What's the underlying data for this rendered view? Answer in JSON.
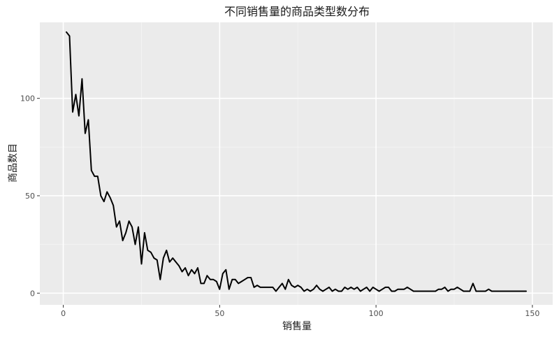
{
  "chart_data": {
    "type": "line",
    "title": "不同销售量的商品类型数分布",
    "xlabel": "销售量",
    "ylabel": "商品数目",
    "xlim": [
      -7.5,
      156.5
    ],
    "ylim": [
      -6,
      139
    ],
    "x_ticks": [
      0,
      50,
      100,
      150
    ],
    "y_ticks": [
      0,
      50,
      100
    ],
    "grid": true,
    "legend": "none",
    "colors": {
      "panel": "#ebebeb",
      "grid_major": "#ffffff",
      "line": "#000000",
      "tick": "#333333"
    },
    "series": [
      {
        "x": [
          1,
          2,
          3,
          4,
          5,
          6,
          7,
          8,
          9,
          10,
          11,
          12,
          13,
          14,
          15,
          16,
          17,
          18,
          19,
          20,
          21,
          22,
          23,
          24,
          25,
          26,
          27,
          28,
          29,
          30,
          31,
          32,
          33,
          34,
          35,
          36,
          37,
          38,
          39,
          40,
          41,
          42,
          43,
          44,
          45,
          46,
          47,
          48,
          49,
          50,
          51,
          52,
          53,
          54,
          55,
          56,
          57,
          58,
          59,
          60,
          61,
          62,
          63,
          64,
          65,
          66,
          67,
          68,
          69,
          70,
          71,
          72,
          73,
          74,
          75,
          76,
          77,
          78,
          79,
          80,
          81,
          82,
          83,
          84,
          85,
          86,
          87,
          88,
          89,
          90,
          91,
          92,
          93,
          94,
          95,
          96,
          97,
          98,
          99,
          100,
          101,
          102,
          103,
          104,
          105,
          106,
          107,
          108,
          109,
          110,
          111,
          112,
          113,
          114,
          115,
          116,
          117,
          118,
          119,
          120,
          121,
          122,
          123,
          124,
          125,
          126,
          127,
          128,
          129,
          130,
          131,
          132,
          133,
          134,
          135,
          136,
          137,
          138,
          139,
          140,
          141,
          142,
          143,
          144,
          145,
          146,
          147,
          148
        ],
        "values": [
          134,
          132,
          93,
          102,
          91,
          110,
          82,
          89,
          63,
          60,
          60,
          50,
          47,
          52,
          49,
          45,
          34,
          37,
          27,
          31,
          37,
          34,
          25,
          34,
          15,
          31,
          22,
          21,
          18,
          17,
          7,
          18,
          22,
          16,
          18,
          16,
          14,
          11,
          13,
          9,
          12,
          10,
          13,
          5,
          5,
          9,
          7,
          7,
          6,
          2,
          10,
          12,
          2,
          7,
          7,
          5,
          6,
          7,
          8,
          8,
          3,
          4,
          3,
          3,
          3,
          3,
          3,
          1,
          3,
          5,
          2,
          7,
          4,
          3,
          4,
          3,
          1,
          2,
          1,
          2,
          4,
          2,
          1,
          2,
          3,
          1,
          2,
          1,
          1,
          3,
          2,
          3,
          2,
          3,
          1,
          2,
          3,
          1,
          3,
          2,
          1,
          2,
          3,
          3,
          1,
          1,
          2,
          2,
          2,
          3,
          2,
          1,
          1,
          1,
          1,
          1,
          1,
          1,
          1,
          2,
          2,
          3,
          1,
          2,
          2,
          3,
          2,
          1,
          1,
          1,
          5,
          1,
          1,
          1,
          1,
          2,
          1,
          1,
          1,
          1,
          1,
          1,
          1,
          1,
          1,
          1,
          1,
          1
        ]
      }
    ]
  }
}
